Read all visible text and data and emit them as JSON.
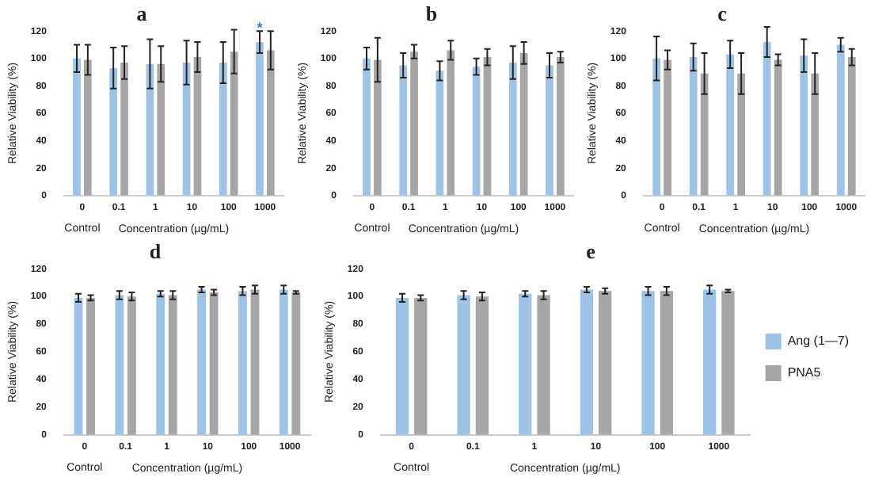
{
  "chart_data": [
    {
      "type": "bar",
      "title": "a",
      "xlabel": "Concentration (µg/mL)",
      "ylabel": "Relative Viability (%)",
      "categories": [
        "0",
        "0.1",
        "1",
        "10",
        "100",
        "1000"
      ],
      "ylim": [
        0,
        120
      ],
      "yticks": [
        0,
        20,
        40,
        60,
        80,
        100,
        120
      ],
      "grid": false,
      "legend": false,
      "annotations": [
        "Control",
        {
          "text": "*",
          "x": "1000",
          "y": 120
        }
      ],
      "series": [
        {
          "color": "#9dc3e6",
          "values": [
            100,
            93,
            96,
            97,
            97,
            112
          ],
          "errors": [
            10,
            15,
            18,
            16,
            15,
            8
          ]
        },
        {
          "color": "#a6a6a6",
          "values": [
            99,
            97,
            96,
            101,
            105,
            106
          ],
          "errors": [
            11,
            12,
            13,
            11,
            16,
            14
          ]
        }
      ]
    },
    {
      "type": "bar",
      "title": "b",
      "xlabel": "Concentration (µg/mL)",
      "ylabel": "Relative Viability (%)",
      "categories": [
        "0",
        "0.1",
        "1",
        "10",
        "100",
        "1000"
      ],
      "ylim": [
        0,
        120
      ],
      "yticks": [
        0,
        20,
        40,
        60,
        80,
        100,
        120
      ],
      "grid": false,
      "legend": false,
      "annotations": [
        "Control"
      ],
      "series": [
        {
          "color": "#9dc3e6",
          "values": [
            100,
            95,
            91,
            94,
            97,
            95
          ],
          "errors": [
            8,
            9,
            7,
            6,
            12,
            9
          ]
        },
        {
          "color": "#a6a6a6",
          "values": [
            99,
            105,
            106,
            101,
            104,
            101
          ],
          "errors": [
            16,
            5,
            7,
            6,
            8,
            4
          ]
        }
      ]
    },
    {
      "type": "bar",
      "title": "c",
      "xlabel": "Concentration (µg/mL)",
      "ylabel": "Relative Viability (%)",
      "categories": [
        "0",
        "0.1",
        "1",
        "10",
        "100",
        "1000"
      ],
      "ylim": [
        0,
        120
      ],
      "yticks": [
        0,
        20,
        40,
        60,
        80,
        100,
        120
      ],
      "grid": false,
      "legend": false,
      "annotations": [
        "Control"
      ],
      "series": [
        {
          "color": "#9dc3e6",
          "values": [
            100,
            101,
            103,
            112,
            102,
            110
          ],
          "errors": [
            16,
            10,
            10,
            11,
            12,
            5
          ]
        },
        {
          "color": "#a6a6a6",
          "values": [
            99,
            89,
            89,
            99,
            89,
            101
          ],
          "errors": [
            7,
            15,
            15,
            4,
            15,
            6
          ]
        }
      ]
    },
    {
      "type": "bar",
      "title": "d",
      "xlabel": "Concentration (µg/mL)",
      "ylabel": "Relative Viability (%)",
      "categories": [
        "0",
        "0.1",
        "1",
        "10",
        "100",
        "1000"
      ],
      "ylim": [
        0,
        120
      ],
      "yticks": [
        0,
        20,
        40,
        60,
        80,
        100,
        120
      ],
      "grid": false,
      "legend": false,
      "annotations": [
        "Control"
      ],
      "series": [
        {
          "color": "#9dc3e6",
          "values": [
            99,
            101,
            102,
            105,
            104,
            105
          ],
          "errors": [
            3,
            3,
            2,
            2,
            3,
            3
          ]
        },
        {
          "color": "#a6a6a6",
          "values": [
            99,
            100,
            101,
            103,
            105,
            103
          ],
          "errors": [
            2,
            3,
            3,
            2,
            3,
            1
          ]
        }
      ]
    },
    {
      "type": "bar",
      "title": "e",
      "xlabel": "Concentration (µg/mL)",
      "ylabel": "Relative Viability (%)",
      "categories": [
        "0",
        "0.1",
        "1",
        "10",
        "100",
        "1000"
      ],
      "ylim": [
        0,
        120
      ],
      "yticks": [
        0,
        20,
        40,
        60,
        80,
        100,
        120
      ],
      "grid": false,
      "legend": "right",
      "annotations": [
        "Control"
      ],
      "series": [
        {
          "name": "Ang (1—7)",
          "color": "#9dc3e6",
          "values": [
            99,
            101,
            102,
            105,
            104,
            105
          ],
          "errors": [
            3,
            3,
            2,
            2,
            3,
            3
          ]
        },
        {
          "name": "PNA5",
          "color": "#a6a6a6",
          "values": [
            99,
            100,
            101,
            104,
            104,
            104
          ],
          "errors": [
            2,
            3,
            3,
            2,
            3,
            1
          ]
        }
      ]
    }
  ]
}
